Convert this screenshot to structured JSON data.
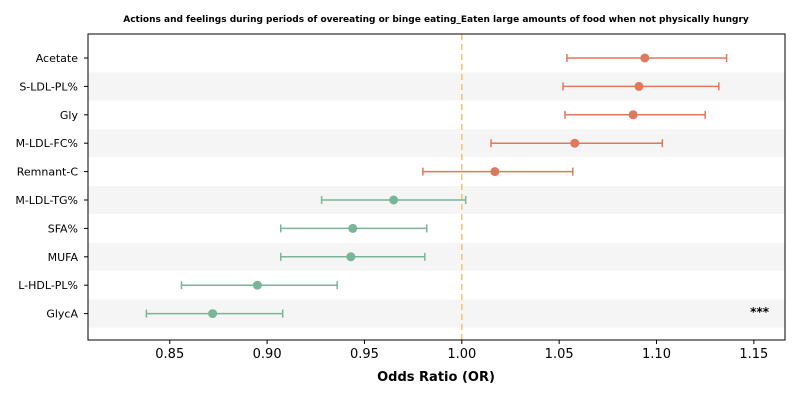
{
  "chart_data": {
    "type": "forest",
    "title": "Actions and feelings during periods of overeating or binge eating_Eaten large amounts of food when not physically hungry",
    "xlabel": "Odds Ratio (OR)",
    "ylabel": "",
    "xlim": [
      0.808,
      1.166
    ],
    "xticks": [
      0.85,
      0.9,
      0.95,
      1.0,
      1.05,
      1.1,
      1.15
    ],
    "xtick_labels": [
      "0.85",
      "0.90",
      "0.95",
      "1.00",
      "1.05",
      "1.10",
      "1.15"
    ],
    "reference_line": 1.0,
    "reference_color": "#f5c26b",
    "row_stripe_color": "#f5f5f5",
    "significance_label": "***",
    "colors": {
      "positive": "#e0785e",
      "negative": "#7ab59a"
    },
    "rows": [
      {
        "label": "Acetate",
        "or": 1.094,
        "lo": 1.054,
        "hi": 1.136
      },
      {
        "label": "S-LDL-PL%",
        "or": 1.091,
        "lo": 1.052,
        "hi": 1.132
      },
      {
        "label": "Gly",
        "or": 1.088,
        "lo": 1.053,
        "hi": 1.125
      },
      {
        "label": "M-LDL-FC%",
        "or": 1.058,
        "lo": 1.015,
        "hi": 1.103
      },
      {
        "label": "Remnant-C",
        "or": 1.017,
        "lo": 0.98,
        "hi": 1.057
      },
      {
        "label": "M-LDL-TG%",
        "or": 0.965,
        "lo": 0.928,
        "hi": 1.002
      },
      {
        "label": "SFA%",
        "or": 0.944,
        "lo": 0.907,
        "hi": 0.982
      },
      {
        "label": "MUFA",
        "or": 0.943,
        "lo": 0.907,
        "hi": 0.981
      },
      {
        "label": "L-HDL-PL%",
        "or": 0.895,
        "lo": 0.856,
        "hi": 0.936
      },
      {
        "label": "GlycA",
        "or": 0.872,
        "lo": 0.838,
        "hi": 0.908
      }
    ]
  }
}
